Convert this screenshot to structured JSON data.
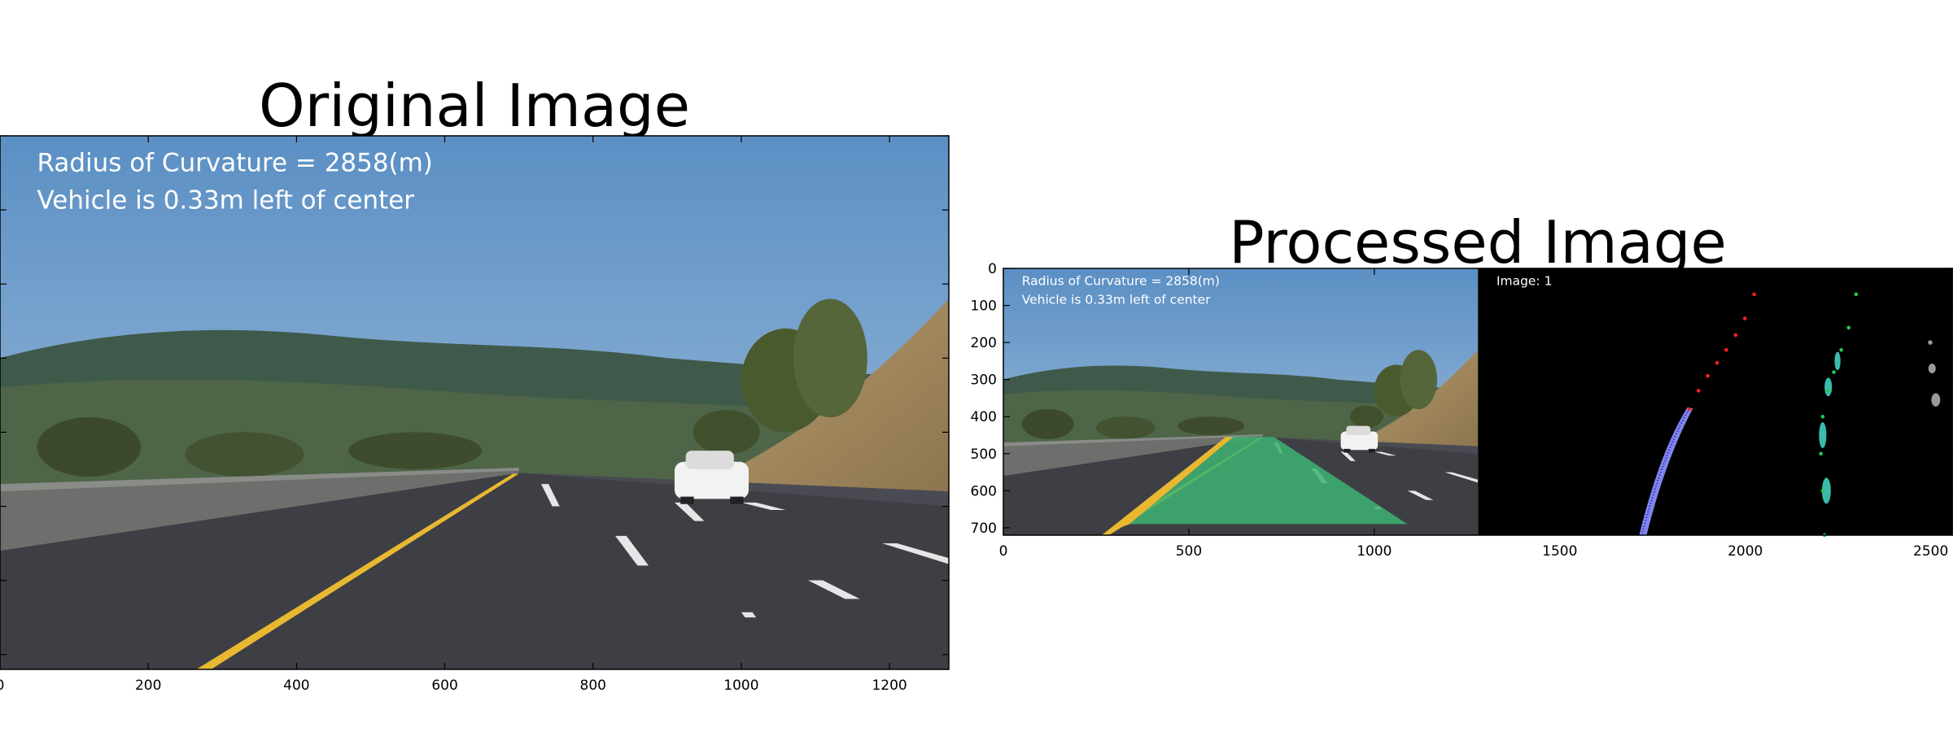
{
  "chart_data": [
    {
      "type": "image",
      "title": "Original Image",
      "xlim": [
        0,
        1280
      ],
      "ylim": [
        720,
        0
      ],
      "x_ticks": [
        0,
        200,
        400,
        600,
        800,
        1000,
        1200
      ],
      "x_tick_labels": [
        "0",
        "200",
        "400",
        "600",
        "800",
        "1000",
        "1200"
      ],
      "y_ticks": [
        0,
        100,
        200,
        300,
        400,
        500,
        600,
        700
      ],
      "y_tick_labels": [],
      "overlay_text": [
        "Radius of Curvature = 2858(m)",
        "Vehicle is 0.33m left of center"
      ]
    },
    {
      "type": "image",
      "title": "Processed Image",
      "xlim": [
        0,
        2560
      ],
      "ylim": [
        720,
        0
      ],
      "x_ticks": [
        0,
        500,
        1000,
        1500,
        2000,
        2500
      ],
      "x_tick_labels": [
        "0",
        "500",
        "1000",
        "1500",
        "2000",
        "2500"
      ],
      "y_ticks": [
        0,
        100,
        200,
        300,
        400,
        500,
        600,
        700
      ],
      "y_tick_labels": [
        "0",
        "100",
        "200",
        "300",
        "400",
        "500",
        "600",
        "700"
      ],
      "overlay_text": [
        "Radius of Curvature = 2858(m)",
        "Vehicle is 0.33m left of center",
        "Image: 1"
      ],
      "lane_fit_points": {
        "left_red": [
          [
            1850,
            380
          ],
          [
            1875,
            330
          ],
          [
            1900,
            290
          ],
          [
            1925,
            255
          ],
          [
            1950,
            220
          ],
          [
            1975,
            180
          ],
          [
            2000,
            135
          ],
          [
            2025,
            70
          ]
        ],
        "right_green": [
          [
            2215,
            720
          ],
          [
            2210,
            600
          ],
          [
            2205,
            500
          ],
          [
            2210,
            400
          ],
          [
            2225,
            330
          ],
          [
            2240,
            280
          ],
          [
            2260,
            220
          ],
          [
            2280,
            160
          ],
          [
            2300,
            70
          ]
        ]
      }
    }
  ],
  "colors": {
    "lane_fill": "#3cb371",
    "left_lane_points": "#ff2020",
    "right_lane_points": "#22cc55",
    "left_pixels": "#3a2bdc",
    "right_pixels": "#40d0c0"
  }
}
